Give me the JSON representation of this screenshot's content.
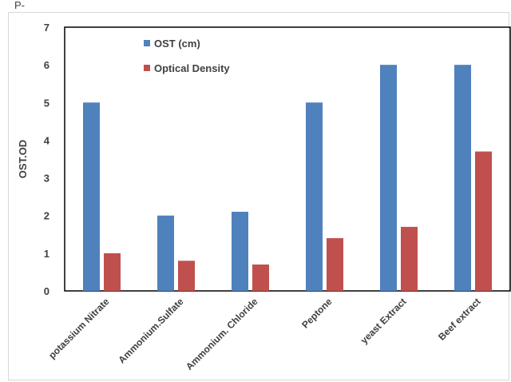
{
  "header_fragment": "P-",
  "chart_data": {
    "type": "bar",
    "title": "",
    "xlabel": "",
    "ylabel": "OST.OD",
    "ylim": [
      0,
      7
    ],
    "yticks": [
      "0",
      "1",
      "2",
      "3",
      "4",
      "5",
      "6",
      "7"
    ],
    "categories": [
      "potassium Nitrate",
      "Ammonium.Sulfate",
      "Ammonium. Chloride",
      "Peptone",
      "yeast Extract",
      "Beef extract"
    ],
    "series": [
      {
        "name": "OST (cm)",
        "color": "#4f81bd",
        "values": [
          5.0,
          2.0,
          2.1,
          5.0,
          6.0,
          6.0
        ]
      },
      {
        "name": "Optical Density",
        "color": "#c0504d",
        "values": [
          1.0,
          0.8,
          0.7,
          1.4,
          1.7,
          3.7
        ]
      }
    ],
    "grid": false,
    "legend": "top-left"
  }
}
